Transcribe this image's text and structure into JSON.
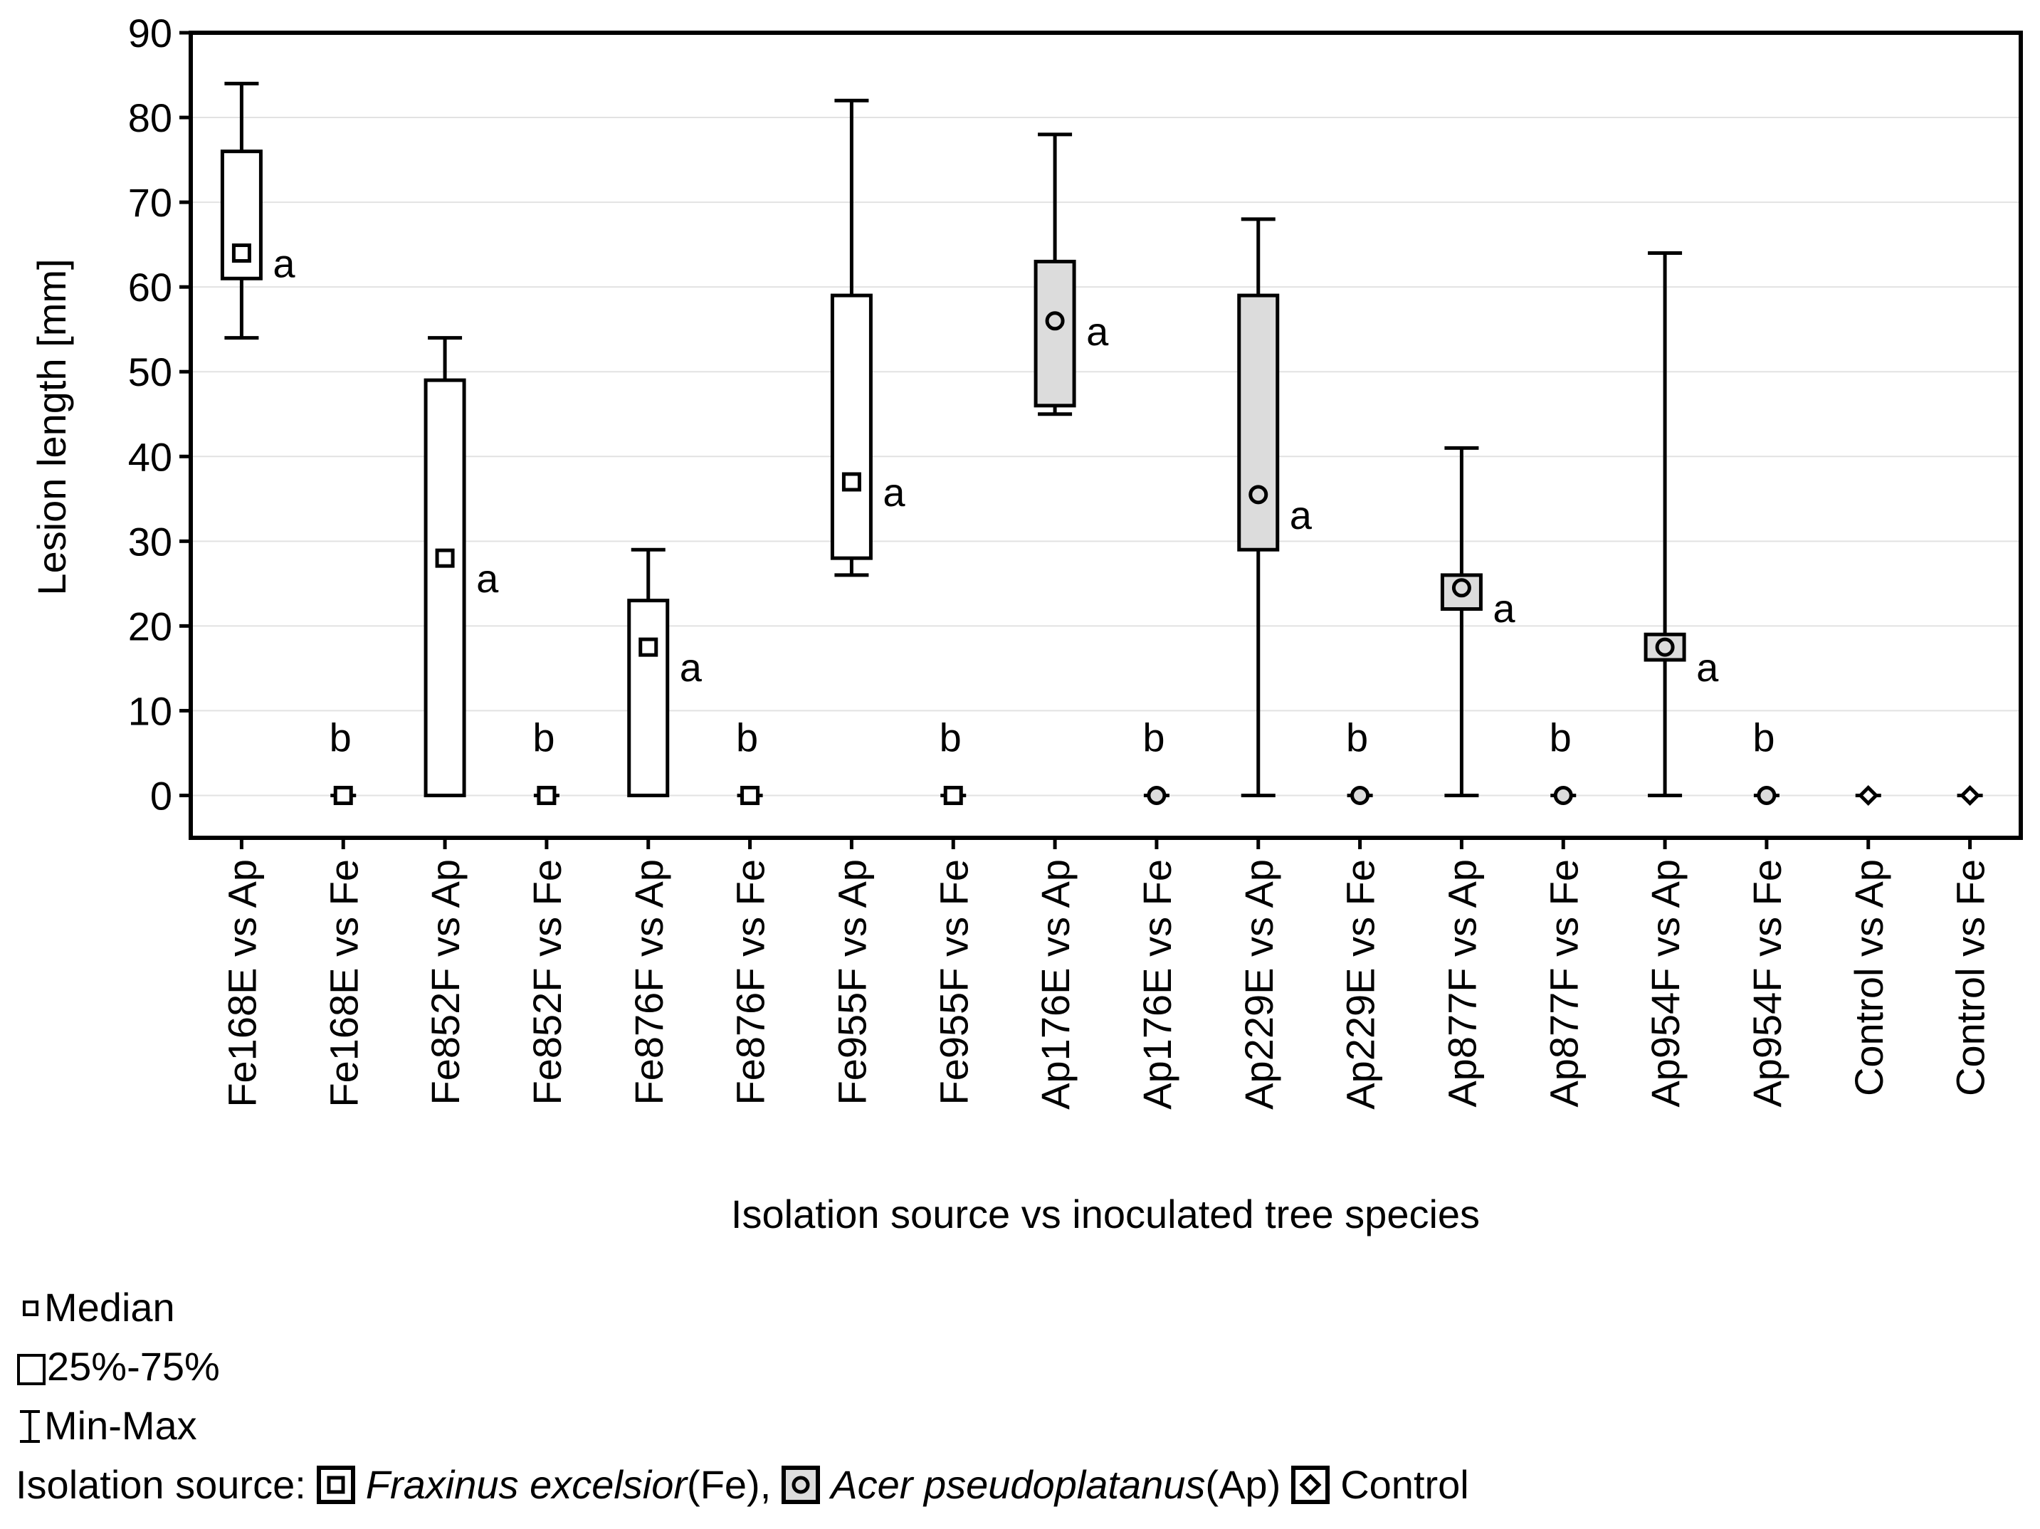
{
  "chart_data": {
    "type": "boxplot",
    "ylabel": "Lesion length [mm]",
    "xlabel": "Isolation source vs inoculated tree species",
    "ylim": [
      -5,
      90
    ],
    "yticks": [
      0,
      10,
      20,
      30,
      40,
      50,
      60,
      70,
      80,
      90
    ],
    "grid": true,
    "colors": {
      "Fe": "#ffffff",
      "Ap": "#dcdcdc",
      "Control": "#ffffff"
    },
    "categories": [
      {
        "label": "Fe168E vs Ap",
        "source": "Fe",
        "min": 54,
        "q1": 61,
        "median": 64,
        "q3": 76,
        "max": 84,
        "letter": "a"
      },
      {
        "label": "Fe168E vs Fe",
        "source": "Fe",
        "min": 0,
        "q1": 0,
        "median": 0,
        "q3": 0,
        "max": 0,
        "letter": "b"
      },
      {
        "label": "Fe852F vs Ap",
        "source": "Fe",
        "min": 0,
        "q1": 0,
        "median": 28,
        "q3": 49,
        "max": 54,
        "letter": "a"
      },
      {
        "label": "Fe852F vs Fe",
        "source": "Fe",
        "min": 0,
        "q1": 0,
        "median": 0,
        "q3": 0,
        "max": 0,
        "letter": "b"
      },
      {
        "label": "Fe876F vs Ap",
        "source": "Fe",
        "min": 0,
        "q1": 0,
        "median": 17.5,
        "q3": 23,
        "max": 29,
        "letter": "a"
      },
      {
        "label": "Fe876F vs Fe",
        "source": "Fe",
        "min": 0,
        "q1": 0,
        "median": 0,
        "q3": 0,
        "max": 0,
        "letter": "b"
      },
      {
        "label": "Fe955F vs Ap",
        "source": "Fe",
        "min": 26,
        "q1": 28,
        "median": 37,
        "q3": 59,
        "max": 82,
        "letter": "a"
      },
      {
        "label": "Fe955F vs Fe",
        "source": "Fe",
        "min": 0,
        "q1": 0,
        "median": 0,
        "q3": 0,
        "max": 0,
        "letter": "b"
      },
      {
        "label": "Ap176E vs Ap",
        "source": "Ap",
        "min": 45,
        "q1": 46,
        "median": 56,
        "q3": 63,
        "max": 78,
        "letter": "a"
      },
      {
        "label": "Ap176E vs Fe",
        "source": "Ap",
        "min": 0,
        "q1": 0,
        "median": 0,
        "q3": 0,
        "max": 0,
        "letter": "b"
      },
      {
        "label": "Ap229E vs Ap",
        "source": "Ap",
        "min": 0,
        "q1": 29,
        "median": 35.5,
        "q3": 59,
        "max": 68,
        "letter": "a"
      },
      {
        "label": "Ap229E vs Fe",
        "source": "Ap",
        "min": 0,
        "q1": 0,
        "median": 0,
        "q3": 0,
        "max": 0,
        "letter": "b"
      },
      {
        "label": "Ap877F vs Ap",
        "source": "Ap",
        "min": 0,
        "q1": 22,
        "median": 24.5,
        "q3": 26,
        "max": 41,
        "letter": "a"
      },
      {
        "label": "Ap877F vs Fe",
        "source": "Ap",
        "min": 0,
        "q1": 0,
        "median": 0,
        "q3": 0,
        "max": 0,
        "letter": "b"
      },
      {
        "label": "Ap954F vs Ap",
        "source": "Ap",
        "min": 0,
        "q1": 16,
        "median": 17.5,
        "q3": 19,
        "max": 64,
        "letter": "a"
      },
      {
        "label": "Ap954F vs Fe",
        "source": "Ap",
        "min": 0,
        "q1": 0,
        "median": 0,
        "q3": 0,
        "max": 0,
        "letter": "b"
      },
      {
        "label": "Control vs Ap",
        "source": "Control",
        "min": 0,
        "q1": 0,
        "median": 0,
        "q3": 0,
        "max": 0,
        "letter": ""
      },
      {
        "label": "Control vs Fe",
        "source": "Control",
        "min": 0,
        "q1": 0,
        "median": 0,
        "q3": 0,
        "max": 0,
        "letter": ""
      }
    ]
  },
  "legend": {
    "median": "Median",
    "iqr": "25%-75%",
    "range": "Min-Max",
    "source_prefix": "Isolation source:",
    "fe_species": "Fraxinus excelsior",
    "fe_abbrev": " (Fe),",
    "ap_species": "Acer pseudoplatanus",
    "ap_abbrev": " (Ap)",
    "control": "Control"
  }
}
